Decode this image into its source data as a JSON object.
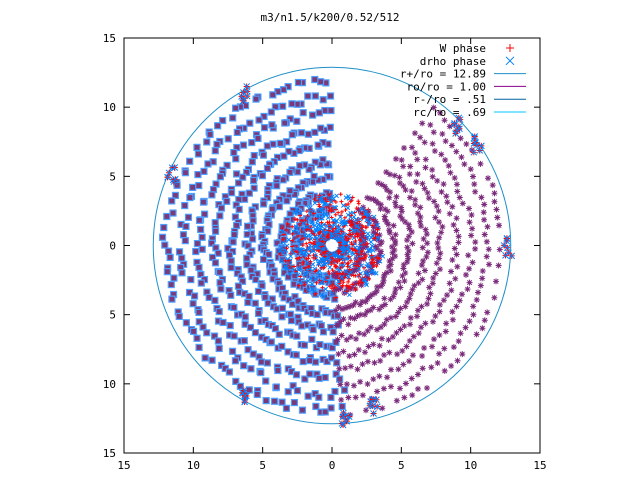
{
  "chart_data": {
    "type": "scatter",
    "title": "m3/n1.5/k200/0.52/512",
    "xlabel": "",
    "ylabel": "",
    "xlim": [
      -15,
      15
    ],
    "ylim": [
      -15,
      15
    ],
    "x_ticks": [
      -15,
      -10,
      -5,
      0,
      5,
      10,
      15
    ],
    "y_ticks": [
      -15,
      -10,
      -5,
      0,
      5,
      10,
      15
    ],
    "x_tick_labels": [
      "15",
      "10",
      "5",
      "0",
      "5",
      "10",
      "15"
    ],
    "y_tick_labels": [
      "15",
      "10",
      "5",
      "0",
      "5",
      "10",
      "15"
    ],
    "grid": false,
    "legend_position": "top-right",
    "series": [
      {
        "name": "W phase",
        "kind": "points",
        "marker": "plus",
        "color": "#ff0000"
      },
      {
        "name": "drho phase",
        "kind": "points",
        "marker": "cross",
        "color": "#0080ff"
      },
      {
        "name": "r+/ro = 12.89",
        "kind": "circle",
        "radius": 12.89,
        "color": "#1e90c8"
      },
      {
        "name": "ro/ro = 1.00",
        "kind": "circle",
        "radius": 1.0,
        "color": "#8b008b"
      },
      {
        "name": "r-/ro = .51",
        "kind": "circle",
        "radius": 0.51,
        "color": "#0060a0"
      },
      {
        "name": "rc/ro = .69",
        "kind": "circle",
        "radius": 0.69,
        "color": "#00c8ff"
      }
    ],
    "point_sets": {
      "filled_square_region": {
        "theta_deg": [
          90,
          275
        ],
        "rmin": 1.0,
        "rmax": 12.89,
        "fill": "#7a3a7a",
        "edge": "#4da0ff"
      },
      "star_region": {
        "theta_deg": [
          -88,
          55
        ],
        "rmin": 1.0,
        "rmax": 12.89,
        "color": "#7a2a7a"
      },
      "edge_clusters": [
        {
          "x": -11.6,
          "y": 5.2
        },
        {
          "x": -6.4,
          "y": 11.1
        },
        {
          "x": -6.4,
          "y": -11.0
        },
        {
          "x": 1.0,
          "y": -12.6
        },
        {
          "x": 3.0,
          "y": -11.8
        },
        {
          "x": 9.0,
          "y": 8.6
        },
        {
          "x": 10.5,
          "y": 7.3
        },
        {
          "x": 12.7,
          "y": -0.1
        }
      ]
    }
  }
}
